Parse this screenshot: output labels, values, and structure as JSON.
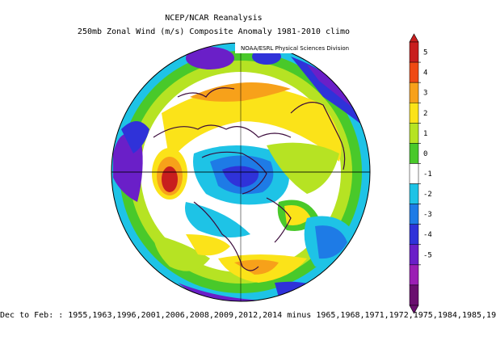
{
  "title": {
    "line1": "NCEP/NCAR Reanalysis",
    "line2": "250mb Zonal Wind (m/s) Composite Anomaly 1981-2010 climo"
  },
  "credit": "NOAA/ESRL Physical Sciences Division",
  "footer": "Dec to Feb: : 1955,1963,1996,2001,2006,2008,2009,2012,2014 minus 1965,1968,1971,1972,1975,1984,1985,19",
  "colorbar": {
    "tick_labels": [
      "5",
      "4",
      "3",
      "2",
      "1",
      "0",
      "-1",
      "-2",
      "-3",
      "-4",
      "-5"
    ],
    "colors": [
      "#c81e1e",
      "#ef4a14",
      "#f7a11a",
      "#fbe319",
      "#b6e323",
      "#49c92a",
      "#ffffff",
      "#1ec3e6",
      "#1e7be6",
      "#2f32d9",
      "#6a1fc8",
      "#9b1fb4",
      "#6a0f6f"
    ]
  }
}
